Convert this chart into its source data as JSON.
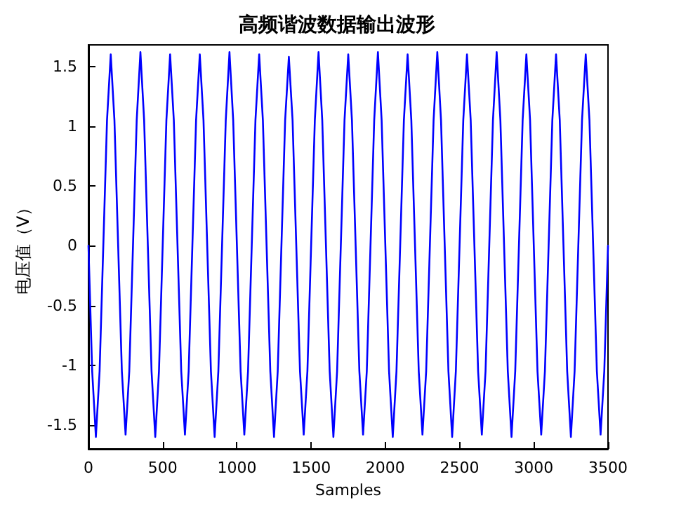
{
  "chart_data": {
    "type": "line",
    "title": "高频谐波数据输出波形",
    "xlabel": "Samples",
    "ylabel": "电压值（V）",
    "x": [
      0,
      25,
      50,
      75,
      100,
      125,
      150,
      175,
      200,
      225,
      250,
      275,
      300,
      325,
      350,
      375,
      400,
      425,
      450,
      475,
      500,
      525,
      550,
      575,
      600,
      625,
      650,
      675,
      700,
      725,
      750,
      775,
      800,
      825,
      850,
      875,
      900,
      925,
      950,
      975,
      1000,
      1025,
      1050,
      1075,
      1100,
      1125,
      1150,
      1175,
      1200,
      1225,
      1250,
      1275,
      1300,
      1325,
      1350,
      1375,
      1400,
      1425,
      1450,
      1475,
      1500,
      1525,
      1550,
      1575,
      1600,
      1625,
      1650,
      1675,
      1700,
      1725,
      1750,
      1775,
      1800,
      1825,
      1850,
      1875,
      1900,
      1925,
      1950,
      1975,
      2000,
      2025,
      2050,
      2075,
      2100,
      2125,
      2150,
      2175,
      2200,
      2225,
      2250,
      2275,
      2300,
      2325,
      2350,
      2375,
      2400,
      2425,
      2450,
      2475,
      2500,
      2525,
      2550,
      2575,
      2600,
      2625,
      2650,
      2675,
      2700,
      2725,
      2750,
      2775,
      2800,
      2825,
      2850,
      2875,
      2900,
      2925,
      2950,
      2975,
      3000,
      3025,
      3050,
      3075,
      3100,
      3125,
      3150,
      3175,
      3200,
      3225,
      3250,
      3275,
      3300,
      3325,
      3350,
      3375,
      3400,
      3425,
      3450,
      3475,
      3500
    ],
    "series": [
      {
        "color": "#0000ff",
        "values": [
          0,
          -1.05,
          -1.6,
          -1.05,
          0,
          1.05,
          1.6,
          1.05,
          0,
          -1.05,
          -1.58,
          -1.05,
          0,
          1.05,
          1.62,
          1.05,
          0,
          -1.05,
          -1.6,
          -1.05,
          0,
          1.05,
          1.6,
          1.05,
          0,
          -1.05,
          -1.58,
          -1.05,
          0,
          1.05,
          1.6,
          1.05,
          0,
          -1.05,
          -1.6,
          -1.05,
          0,
          1.05,
          1.62,
          1.05,
          0,
          -1.05,
          -1.58,
          -1.05,
          0,
          1.05,
          1.6,
          1.05,
          0,
          -1.05,
          -1.6,
          -1.05,
          0,
          1.05,
          1.58,
          1.05,
          0,
          -1.05,
          -1.58,
          -1.05,
          0,
          1.05,
          1.62,
          1.05,
          0,
          -1.05,
          -1.6,
          -1.05,
          0,
          1.05,
          1.6,
          1.05,
          0,
          -1.05,
          -1.58,
          -1.05,
          0,
          1.05,
          1.62,
          1.05,
          0,
          -1.05,
          -1.6,
          -1.05,
          0,
          1.05,
          1.6,
          1.05,
          0,
          -1.05,
          -1.58,
          -1.05,
          0,
          1.05,
          1.62,
          1.05,
          0,
          -1.05,
          -1.6,
          -1.05,
          0,
          1.05,
          1.6,
          1.05,
          0,
          -1.05,
          -1.58,
          -1.05,
          0,
          1.05,
          1.62,
          1.05,
          0,
          -1.05,
          -1.6,
          -1.05,
          0,
          1.05,
          1.6,
          1.05,
          0,
          -1.05,
          -1.58,
          -1.05,
          0,
          1.05,
          1.6,
          1.05,
          0,
          -1.05,
          -1.6,
          -1.05,
          0,
          1.05,
          1.6,
          1.05,
          0,
          -1.05,
          -1.58,
          -1.05,
          0
        ]
      }
    ],
    "xlim": [
      0,
      3500
    ],
    "xticks": [
      0,
      500,
      1000,
      1500,
      2000,
      2500,
      3000,
      3500
    ],
    "ylim": [
      -1.7,
      1.68
    ],
    "yticks": [
      -1.5,
      -1,
      -0.5,
      0,
      0.5,
      1,
      1.5
    ],
    "grid": false,
    "marker": "none",
    "line_style": "solid"
  }
}
